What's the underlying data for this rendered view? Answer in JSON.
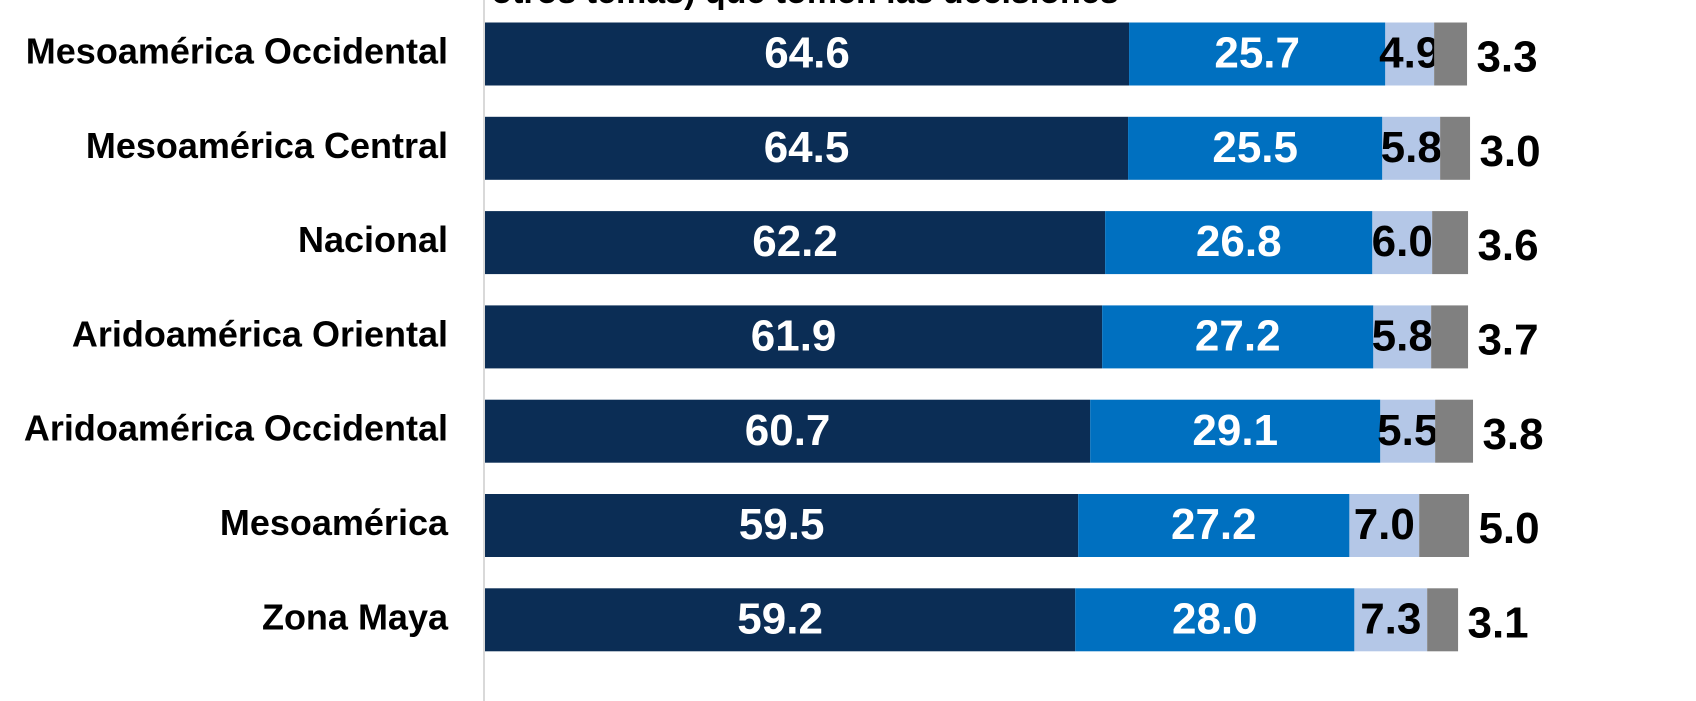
{
  "chart_data": {
    "type": "stacked-bar-horizontal",
    "title": "otros temas) que tomen las decisiones",
    "categories": [
      "Mesoamérica Occidental",
      "Mesoamérica Central",
      "Nacional",
      "Aridoamérica Oriental",
      "Aridoamérica Occidental",
      "Mesoamérica",
      "Zona Maya"
    ],
    "xlim": [
      0,
      100
    ],
    "series": [
      {
        "color": "#0b2d55",
        "label_color": "#ffffff",
        "values": [
          64.6,
          64.5,
          62.2,
          61.9,
          60.7,
          59.5,
          59.2
        ],
        "value_labels": [
          "64.6",
          "64.5",
          "62.2",
          "61.9",
          "60.7",
          "59.5",
          "59.2"
        ]
      },
      {
        "color": "#0070c0",
        "label_color": "#ffffff",
        "values": [
          25.7,
          25.5,
          26.8,
          27.2,
          29.1,
          27.2,
          28.0
        ],
        "value_labels": [
          "25.7",
          "25.5",
          "26.8",
          "27.2",
          "29.1",
          "27.2",
          "28.0"
        ]
      },
      {
        "color": "#b4c7e7",
        "label_color": "#000000",
        "values": [
          4.9,
          5.8,
          6.0,
          5.8,
          5.5,
          7.0,
          7.3
        ],
        "value_labels": [
          "4.9",
          "5.8",
          "6.0",
          "5.8",
          "5.5",
          "7.0",
          "7.3"
        ]
      },
      {
        "color": "#808080",
        "label_color": "#000000",
        "values": [
          3.3,
          3.0,
          3.6,
          3.7,
          3.8,
          5.0,
          3.1
        ],
        "value_labels": [
          "3.3",
          "3.0",
          "3.6",
          "3.7",
          "3.8",
          "5.0",
          "3.1"
        ]
      }
    ]
  }
}
